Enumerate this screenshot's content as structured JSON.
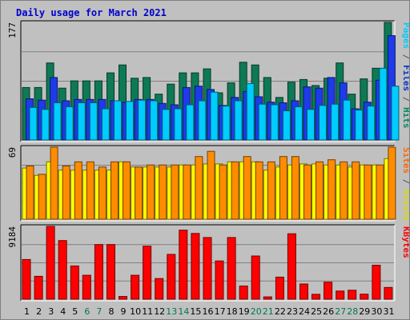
{
  "chart_data": {
    "type": "bar",
    "title": "Daily usage for March 2021",
    "categories": [
      "1",
      "2",
      "3",
      "4",
      "5",
      "6",
      "7",
      "8",
      "9",
      "10",
      "11",
      "12",
      "13",
      "14",
      "15",
      "16",
      "17",
      "18",
      "19",
      "20",
      "21",
      "22",
      "23",
      "24",
      "25",
      "26",
      "27",
      "28",
      "29",
      "30",
      "31"
    ],
    "weekend_days": [
      "6",
      "7",
      "13",
      "14",
      "20",
      "21",
      "27",
      "28"
    ],
    "panels": [
      {
        "id": "pages-files-hits",
        "axis_max_label": "177",
        "ylim": [
          0,
          177
        ],
        "legend": [
          {
            "text": "Pages",
            "color": "#00ccff"
          },
          {
            "text": " / ",
            "color": "#555555"
          },
          {
            "text": "Files",
            "color": "#0033cc"
          },
          {
            "text": " / ",
            "color": "#555555"
          },
          {
            "text": "Hits",
            "color": "#008866"
          }
        ],
        "series": [
          {
            "name": "Hits",
            "color": "#0e7a55",
            "values": [
              79,
              79,
              116,
              78,
              89,
              89,
              89,
              101,
              113,
              93,
              94,
              69,
              84,
              101,
              101,
              107,
              71,
              86,
              117,
              113,
              94,
              64,
              87,
              91,
              82,
              93,
              116,
              69,
              92,
              108,
              177
            ]
          },
          {
            "name": "Files",
            "color": "#1d3be8",
            "values": [
              62,
              60,
              94,
              59,
              61,
              61,
              61,
              59,
              57,
              61,
              61,
              55,
              53,
              79,
              81,
              76,
              52,
              64,
              73,
              65,
              57,
              56,
              59,
              80,
              78,
              94,
              86,
              47,
              57,
              90,
              157
            ]
          },
          {
            "name": "Pages",
            "color": "#00ccff",
            "values": [
              49,
              46,
              56,
              50,
              56,
              56,
              47,
              59,
              58,
              60,
              59,
              46,
              47,
              53,
              59,
              72,
              51,
              59,
              85,
              54,
              53,
              44,
              50,
              46,
              52,
              54,
              60,
              45,
              51,
              108,
              81
            ]
          }
        ]
      },
      {
        "id": "sites-visits",
        "axis_max_label": "69",
        "ylim": [
          0,
          69
        ],
        "legend": [
          {
            "text": "Sites",
            "color": "#ff6600"
          },
          {
            "text": " / ",
            "color": "#555555"
          },
          {
            "text": "Visits",
            "color": "#d8d800"
          }
        ],
        "series": [
          {
            "name": "Visits",
            "color": "#ffff00",
            "values": [
              49,
              42,
              55,
              47,
              47,
              47,
              47,
              47,
              55,
              50,
              50,
              50,
              50,
              52,
              52,
              53,
              53,
              55,
              55,
              55,
              47,
              50,
              52,
              53,
              53,
              52,
              52,
              50,
              52,
              52,
              58
            ]
          },
          {
            "name": "Sites",
            "color": "#ff8c00",
            "values": [
              51,
              43,
              69,
              51,
              55,
              55,
              50,
              55,
              55,
              50,
              52,
              52,
              52,
              52,
              60,
              65,
              52,
              55,
              60,
              55,
              55,
              60,
              60,
              52,
              55,
              57,
              55,
              55,
              52,
              52,
              69
            ]
          }
        ]
      },
      {
        "id": "kbytes",
        "axis_max_label": "9184",
        "ylim": [
          0,
          9184
        ],
        "legend": [
          {
            "text": "KBytes",
            "color": "#ff0000"
          }
        ],
        "series": [
          {
            "name": "KBytes",
            "color": "#ff0000",
            "values": [
              5010,
              2890,
              9184,
              7400,
              4200,
              3020,
              6890,
              6890,
              340,
              3020,
              6690,
              2600,
              5650,
              8710,
              8300,
              7780,
              4820,
              7780,
              1670,
              5450,
              290,
              2790,
              8260,
              1920,
              620,
              2150,
              1030,
              1130,
              640,
              4290,
              1480
            ]
          }
        ]
      }
    ]
  }
}
